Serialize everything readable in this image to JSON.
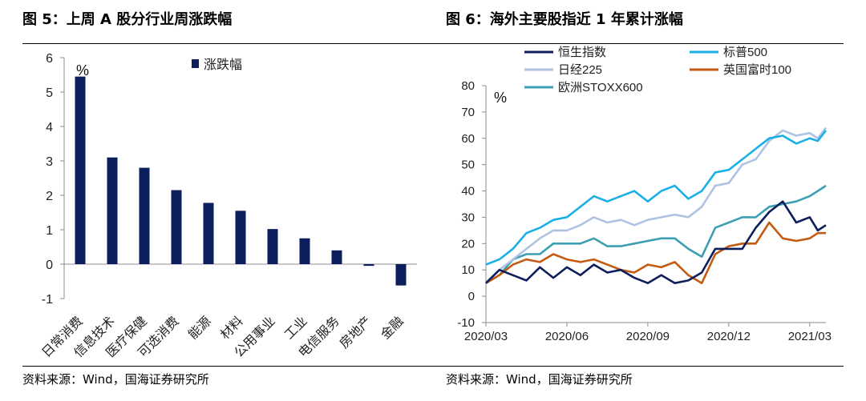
{
  "left": {
    "title": "图 5：上周 A 股分行业周涨跌幅",
    "source": "资料来源：Wind，国海证券研究所",
    "chart_data": {
      "type": "bar",
      "title": "",
      "ylabel": "%",
      "ylim": [
        -1,
        6
      ],
      "yticks": [
        -1,
        0,
        1,
        2,
        3,
        4,
        5,
        6
      ],
      "legend": [
        "涨跌幅"
      ],
      "bar_color": "#0c1f5c",
      "categories": [
        "日常消费",
        "信息技术",
        "医疗保健",
        "可选消费",
        "能源",
        "材料",
        "公用事业",
        "工业",
        "电信服务",
        "房地产",
        "金融"
      ],
      "values": [
        5.45,
        3.1,
        2.8,
        2.15,
        1.78,
        1.55,
        1.02,
        0.75,
        0.4,
        -0.05,
        -0.62
      ]
    }
  },
  "right": {
    "title": "图 6：海外主要股指近 1 年累计涨幅",
    "source": "资料来源：Wind，国海证券研究所",
    "chart_data": {
      "type": "line",
      "ylabel": "%",
      "ylim": [
        -10,
        80
      ],
      "yticks": [
        -10,
        0,
        10,
        20,
        30,
        40,
        50,
        60,
        70,
        80
      ],
      "xlim": [
        0,
        12.6
      ],
      "xticks": [
        0,
        3,
        6,
        9,
        12
      ],
      "xticklabels": [
        "2020/03",
        "2020/06",
        "2020/09",
        "2020/12",
        "2021/03"
      ],
      "series": [
        {
          "name": "恒生指数",
          "color": "#0c1f5c",
          "x": [
            0,
            0.5,
            1,
            1.5,
            2,
            2.5,
            3,
            3.5,
            4,
            4.5,
            5,
            5.5,
            6,
            6.5,
            7,
            7.5,
            8,
            8.5,
            9,
            9.5,
            10,
            10.5,
            11,
            11.5,
            12,
            12.3,
            12.6
          ],
          "y": [
            5,
            10,
            8,
            6,
            11,
            7,
            11,
            8,
            12,
            9,
            10,
            7,
            5,
            8,
            5,
            6,
            9,
            18,
            18,
            18,
            26,
            32,
            36,
            28,
            30,
            25,
            27
          ]
        },
        {
          "name": "标普500",
          "color": "#1ab0e6",
          "x": [
            0,
            0.5,
            1,
            1.5,
            2,
            2.5,
            3,
            3.5,
            4,
            4.5,
            5,
            5.5,
            6,
            6.5,
            7,
            7.5,
            8,
            8.5,
            9,
            9.5,
            10,
            10.5,
            11,
            11.5,
            12,
            12.3,
            12.6
          ],
          "y": [
            12,
            14,
            18,
            24,
            26,
            29,
            30,
            34,
            38,
            36,
            38,
            40,
            36,
            40,
            42,
            37,
            40,
            47,
            48,
            52,
            56,
            60,
            61,
            58,
            60,
            59,
            63
          ]
        },
        {
          "name": "日经225",
          "color": "#b0c2e2",
          "x": [
            0,
            0.5,
            1,
            1.5,
            2,
            2.5,
            3,
            3.5,
            4,
            4.5,
            5,
            5.5,
            6,
            6.5,
            7,
            7.5,
            8,
            8.5,
            9,
            9.5,
            10,
            10.5,
            11,
            11.5,
            12,
            12.3,
            12.6
          ],
          "y": [
            5,
            10,
            14,
            18,
            22,
            25,
            25,
            27,
            30,
            28,
            29,
            27,
            29,
            30,
            31,
            30,
            34,
            42,
            43,
            50,
            52,
            59,
            63,
            61,
            62,
            60,
            64
          ]
        },
        {
          "name": "英国富时100",
          "color": "#c55a11",
          "x": [
            0,
            0.5,
            1,
            1.5,
            2,
            2.5,
            3,
            3.5,
            4,
            4.5,
            5,
            5.5,
            6,
            6.5,
            7,
            7.5,
            8,
            8.5,
            9,
            9.5,
            10,
            10.5,
            11,
            11.5,
            12,
            12.3,
            12.6
          ],
          "y": [
            5,
            8,
            12,
            14,
            13,
            16,
            14,
            13,
            14,
            12,
            10,
            9,
            12,
            11,
            13,
            8,
            5,
            16,
            19,
            20,
            20,
            28,
            22,
            21,
            22,
            24,
            24
          ]
        },
        {
          "name": "欧洲STOXX600",
          "color": "#3d9fb4",
          "x": [
            0,
            0.5,
            1,
            1.5,
            2,
            2.5,
            3,
            3.5,
            4,
            4.5,
            5,
            5.5,
            6,
            6.5,
            7,
            7.5,
            8,
            8.5,
            9,
            9.5,
            10,
            10.5,
            11,
            11.5,
            12,
            12.3,
            12.6
          ],
          "y": [
            5,
            8,
            14,
            16,
            16,
            20,
            20,
            20,
            22,
            19,
            19,
            20,
            21,
            22,
            22,
            18,
            15,
            26,
            28,
            30,
            30,
            34,
            35,
            36,
            38,
            40,
            42
          ]
        }
      ]
    }
  }
}
